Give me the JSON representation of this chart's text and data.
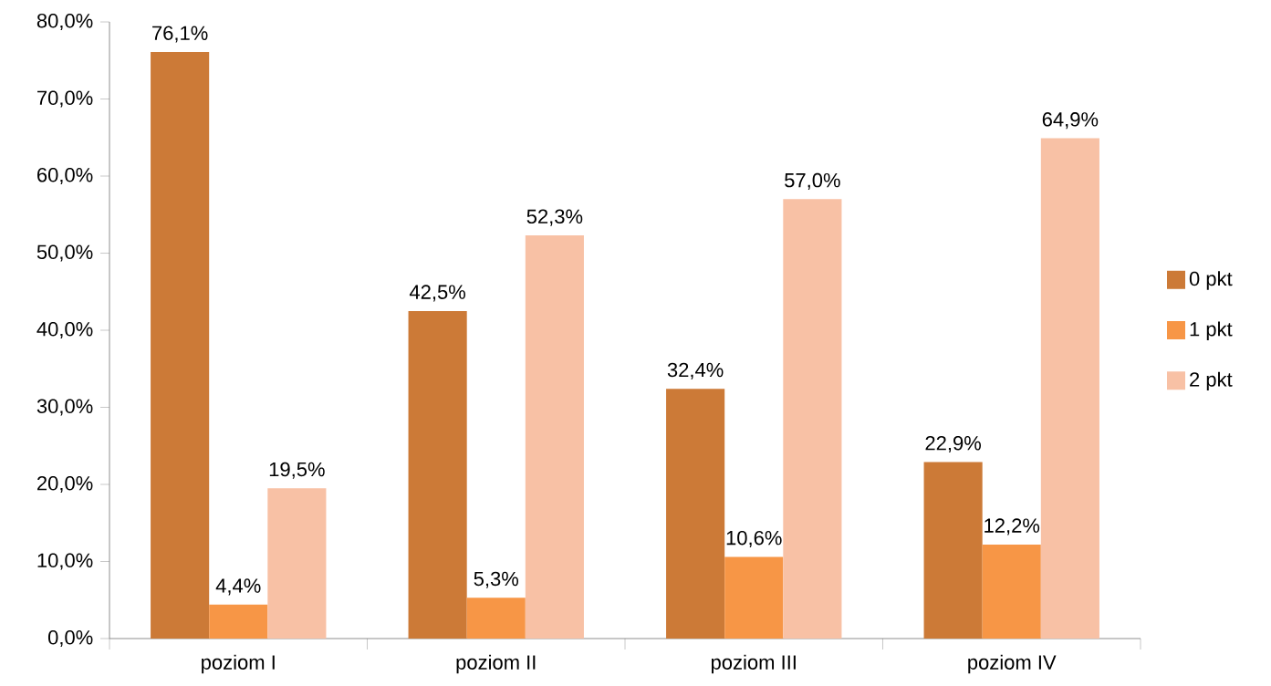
{
  "chart_data": {
    "type": "bar",
    "categories": [
      "poziom I",
      "poziom II",
      "poziom III",
      "poziom IV"
    ],
    "series": [
      {
        "name": "0 pkt",
        "color": "#cc7a37",
        "values": [
          76.1,
          42.5,
          32.4,
          22.9
        ],
        "value_labels": [
          "76,1%",
          "42,5%",
          "32,4%",
          "22,9%"
        ]
      },
      {
        "name": "1 pkt",
        "color": "#f79646",
        "values": [
          4.4,
          5.3,
          10.6,
          12.2
        ],
        "value_labels": [
          "4,4%",
          "5,3%",
          "10,6%",
          "12,2%"
        ]
      },
      {
        "name": "2 pkt",
        "color": "#f8c1a5",
        "values": [
          19.5,
          52.3,
          57.0,
          64.9
        ],
        "value_labels": [
          "19,5%",
          "52,3%",
          "57,0%",
          "64,9%"
        ]
      }
    ],
    "ylim": [
      0,
      80
    ],
    "yticks": [
      {
        "value": 0,
        "label": "0,0%"
      },
      {
        "value": 10,
        "label": "10,0%"
      },
      {
        "value": 20,
        "label": "20,0%"
      },
      {
        "value": 30,
        "label": "30,0%"
      },
      {
        "value": 40,
        "label": "40,0%"
      },
      {
        "value": 50,
        "label": "50,0%"
      },
      {
        "value": 60,
        "label": "60,0%"
      },
      {
        "value": 70,
        "label": "70,0%"
      },
      {
        "value": 80,
        "label": "80,0%"
      }
    ],
    "legend": "right"
  }
}
